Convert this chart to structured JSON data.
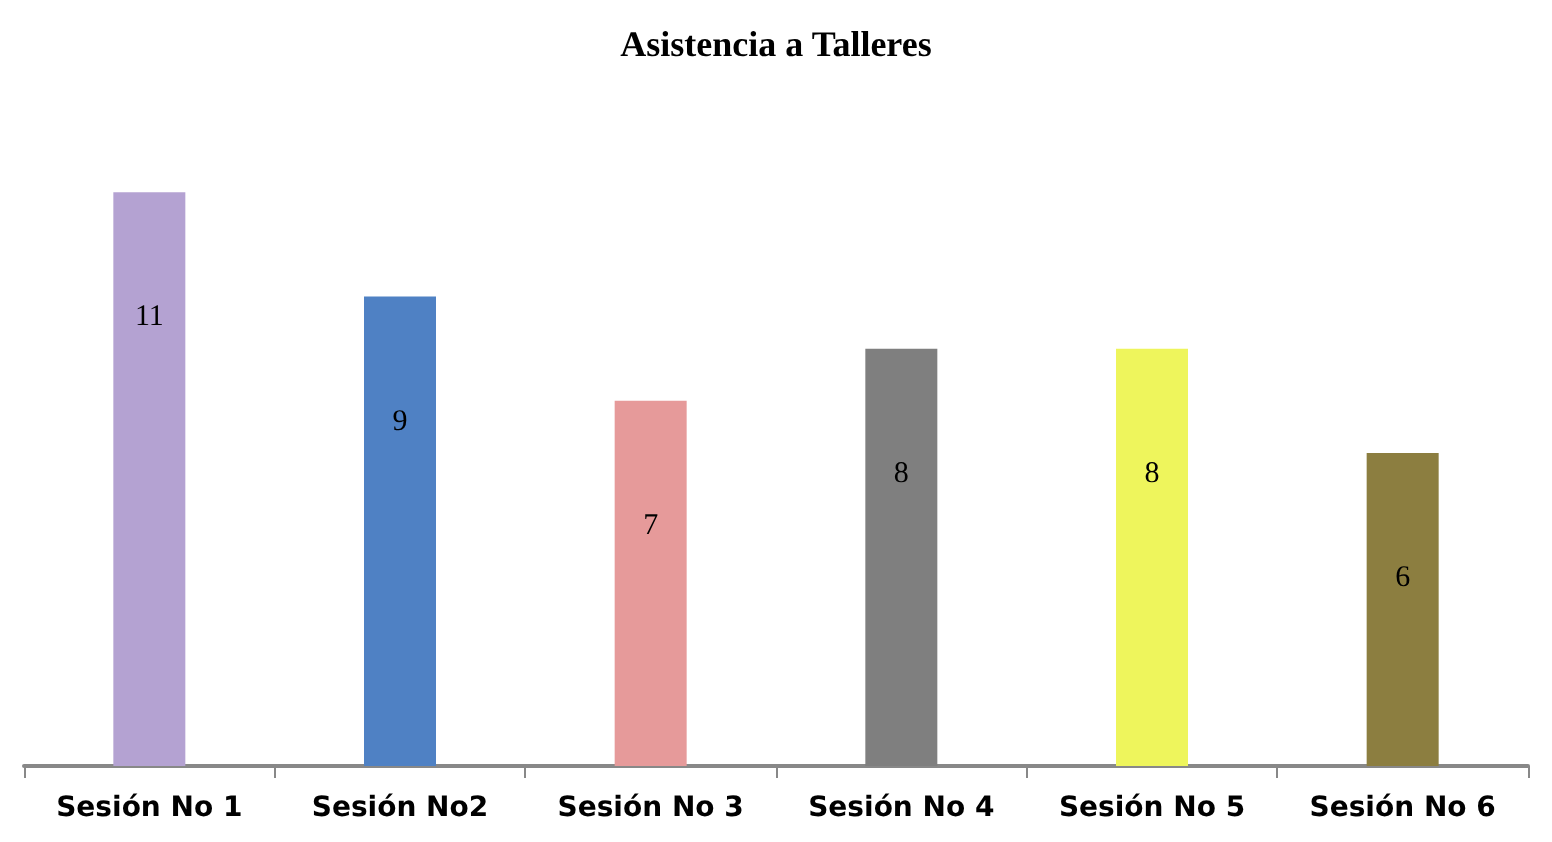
{
  "chart_data": {
    "type": "bar",
    "title": "Asistencia a Talleres",
    "categories": [
      "Sesión No 1",
      "Sesión No2",
      "Sesión No 3",
      "Sesión No 4",
      "Sesión No 5",
      "Sesión No 6"
    ],
    "values": [
      11,
      9,
      7,
      8,
      8,
      6
    ],
    "colors": [
      "#b4a2d2",
      "#4f81c4",
      "#e69a9a",
      "#7f7f7f",
      "#eef55c",
      "#8c7e40"
    ],
    "data_labels": true
  }
}
